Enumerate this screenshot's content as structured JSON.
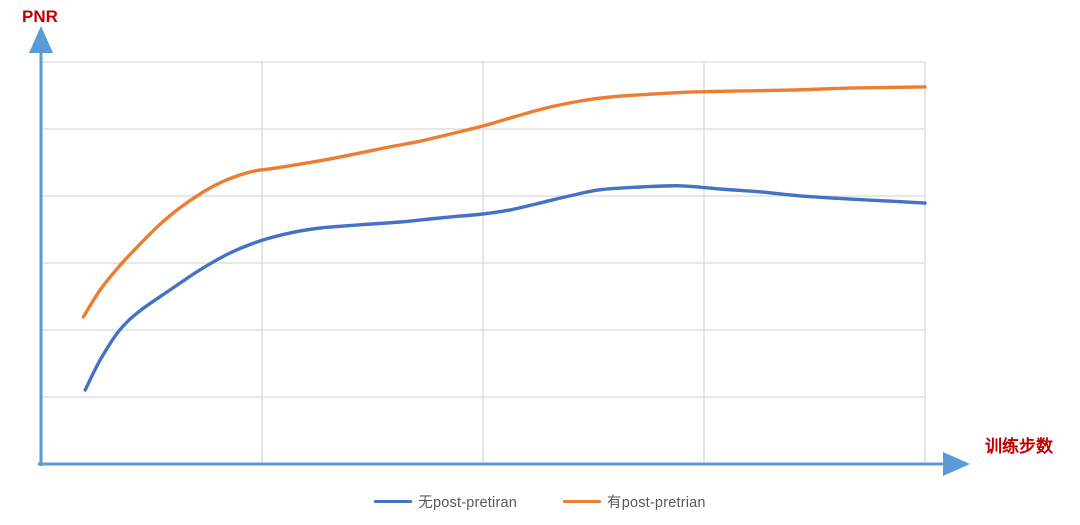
{
  "page": {
    "background": "#ffffff",
    "y_axis_title": "PNR",
    "x_axis_title": "训练步数"
  },
  "colors": {
    "axis_blue": "#5b9bd5",
    "grid_gray": "#d9d9d9",
    "axis_label_red": "#c00000",
    "series_no_posttrain": "#4472c4",
    "series_with_posttrain": "#ed7d31",
    "legend_text": "#595959"
  },
  "legend": {
    "items": [
      {
        "label": "无post-pretiran",
        "color": "#4472c4"
      },
      {
        "label": "有post-pretrian",
        "color": "#ed7d31"
      }
    ]
  },
  "chart_data": {
    "type": "line",
    "title": "",
    "xlabel": "训练步数",
    "ylabel": "PNR",
    "x_ticks": [],
    "y_ticks": [],
    "axis_arrows": true,
    "grid": {
      "visible": true,
      "rows": 6,
      "cols": 4
    },
    "legend_position": "bottom-center",
    "coords_note": "axes are unlabeled; points are normalized fractions: x = position along x-axis (0-1), y = height above x-axis as fraction of plot height (0-1)",
    "series": [
      {
        "name": "无post-pretiran",
        "color": "#4472c4",
        "points": [
          [
            0.05,
            0.184
          ],
          [
            0.067,
            0.259
          ],
          [
            0.089,
            0.333
          ],
          [
            0.112,
            0.381
          ],
          [
            0.146,
            0.433
          ],
          [
            0.18,
            0.483
          ],
          [
            0.214,
            0.525
          ],
          [
            0.248,
            0.555
          ],
          [
            0.282,
            0.575
          ],
          [
            0.316,
            0.587
          ],
          [
            0.361,
            0.595
          ],
          [
            0.406,
            0.602
          ],
          [
            0.451,
            0.612
          ],
          [
            0.5,
            0.622
          ],
          [
            0.531,
            0.632
          ],
          [
            0.564,
            0.649
          ],
          [
            0.598,
            0.667
          ],
          [
            0.632,
            0.682
          ],
          [
            0.678,
            0.689
          ],
          [
            0.723,
            0.692
          ],
          [
            0.768,
            0.684
          ],
          [
            0.813,
            0.677
          ],
          [
            0.859,
            0.667
          ],
          [
            0.915,
            0.659
          ],
          [
            0.96,
            0.654
          ],
          [
            1.0,
            0.649
          ]
        ]
      },
      {
        "name": "有post-pretrian",
        "color": "#ed7d31",
        "points": [
          [
            0.048,
            0.366
          ],
          [
            0.067,
            0.433
          ],
          [
            0.089,
            0.493
          ],
          [
            0.112,
            0.547
          ],
          [
            0.135,
            0.597
          ],
          [
            0.157,
            0.637
          ],
          [
            0.18,
            0.672
          ],
          [
            0.202,
            0.699
          ],
          [
            0.225,
            0.719
          ],
          [
            0.242,
            0.729
          ],
          [
            0.265,
            0.736
          ],
          [
            0.293,
            0.746
          ],
          [
            0.327,
            0.759
          ],
          [
            0.361,
            0.774
          ],
          [
            0.395,
            0.789
          ],
          [
            0.429,
            0.803
          ],
          [
            0.463,
            0.821
          ],
          [
            0.5,
            0.841
          ],
          [
            0.542,
            0.868
          ],
          [
            0.576,
            0.888
          ],
          [
            0.61,
            0.903
          ],
          [
            0.644,
            0.913
          ],
          [
            0.689,
            0.92
          ],
          [
            0.734,
            0.925
          ],
          [
            0.791,
            0.928
          ],
          [
            0.847,
            0.93
          ],
          [
            0.915,
            0.935
          ],
          [
            1.0,
            0.938
          ]
        ]
      }
    ]
  }
}
